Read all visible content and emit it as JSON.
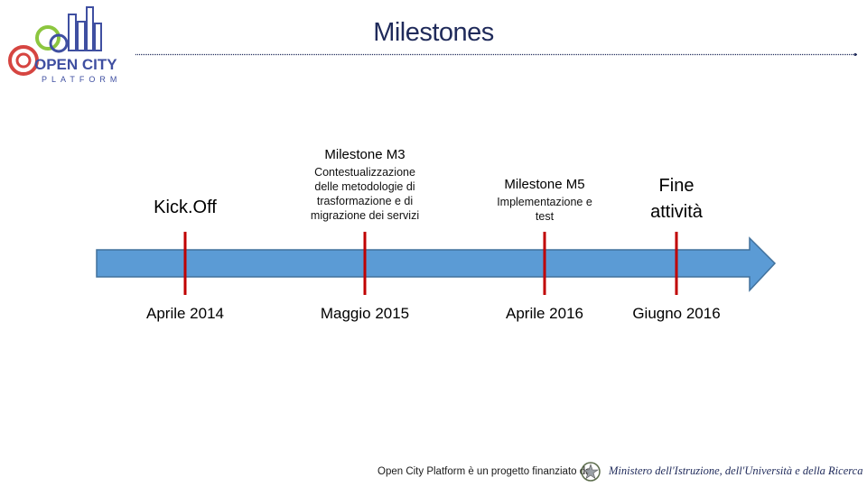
{
  "header": {
    "title": "Milestones",
    "logo_text_main": "OPEN CITY",
    "logo_text_sub": "PLATFORM"
  },
  "timeline": {
    "milestones": [
      {
        "head": "Kick.Off",
        "date": "Aprile 2014"
      },
      {
        "head": "Milestone M3",
        "desc": "Contestualizzazione delle metodologie di trasformazione e di migrazione dei servizi",
        "date": "Maggio 2015"
      },
      {
        "head": "Milestone M5",
        "desc": "Implementazione e test",
        "date": "Aprile 2016"
      },
      {
        "head": "Fine attività",
        "date": "Giugno 2016"
      }
    ]
  },
  "footer": {
    "text": "Open City Platform è un progetto finanziato da",
    "ministry": "Ministero dell'Istruzione, dell'Università e della Ricerca"
  },
  "colors": {
    "arrow_fill": "#5b9bd5",
    "arrow_stroke": "#41719c",
    "marker": "#c00000",
    "title": "#1f2a5a",
    "rule": "#1f2a5a",
    "logo_green": "#8cc63f",
    "logo_blue": "#3f4fa1",
    "logo_red": "#d64541"
  }
}
